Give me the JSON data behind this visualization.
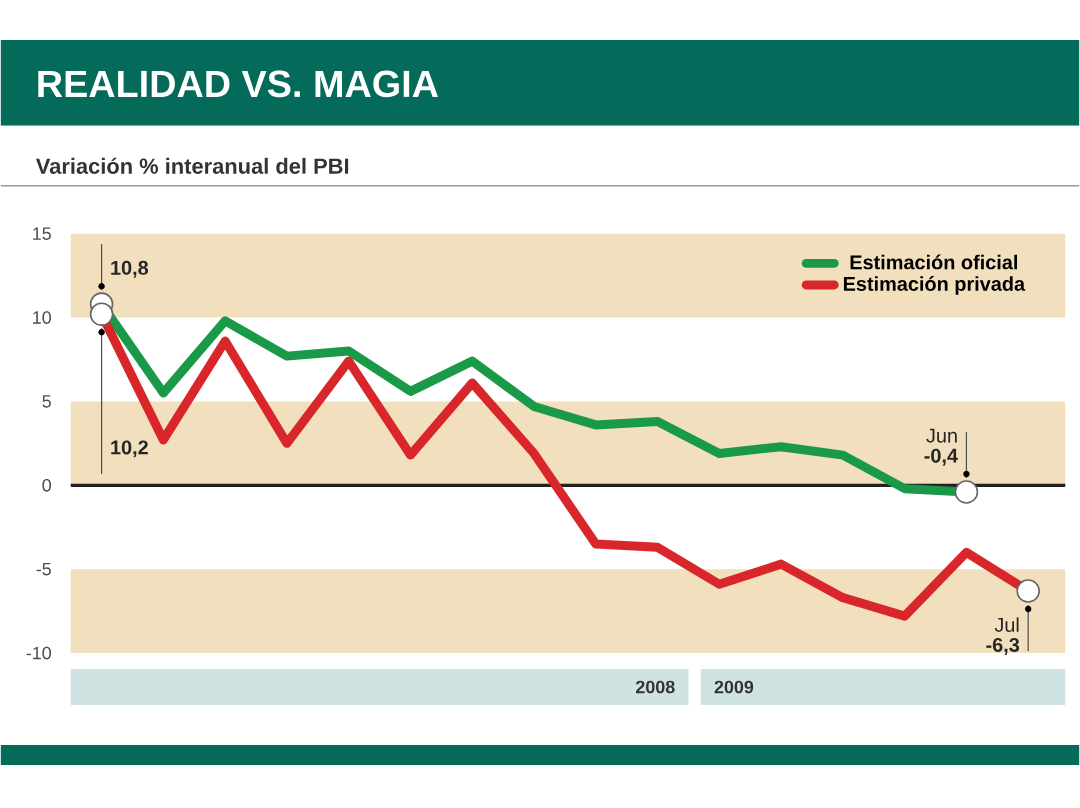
{
  "chart_data": {
    "type": "line",
    "title": "REALIDAD VS. MAGIA",
    "subtitle": "Variación % interanual del PBI",
    "categories": [
      null,
      null,
      null,
      null,
      null,
      null,
      null,
      null,
      null,
      null,
      null,
      null,
      null,
      null,
      null,
      null
    ],
    "series": [
      {
        "name": "Estimación oficial",
        "color": "#1a9a48",
        "values": [
          10.8,
          5.5,
          9.8,
          7.7,
          8.0,
          5.6,
          7.4,
          4.7,
          3.6,
          3.8,
          1.9,
          2.3,
          1.8,
          -0.2,
          -0.4,
          null
        ],
        "value_labels": [
          "10,8",
          null,
          null,
          null,
          null,
          null,
          null,
          null,
          null,
          null,
          null,
          null,
          null,
          null,
          "-0,4",
          null
        ]
      },
      {
        "name": "Estimación privada",
        "color": "#d8262a",
        "values": [
          10.2,
          2.7,
          8.6,
          2.5,
          7.4,
          1.8,
          6.1,
          1.9,
          -3.5,
          -3.7,
          -5.9,
          -4.7,
          -6.7,
          -7.8,
          -4.0,
          -6.3
        ],
        "value_labels": [
          "10,2",
          null,
          null,
          null,
          null,
          null,
          null,
          null,
          null,
          null,
          null,
          null,
          null,
          null,
          null,
          "-6,3"
        ]
      }
    ],
    "ylim": [
      -10,
      15
    ],
    "yticks": [
      -10,
      -5,
      0,
      5,
      10,
      15
    ],
    "grid": false,
    "legend": "top right",
    "marker": "none",
    "line_style": "solid",
    "bands": [
      {
        "axis": "y",
        "from": 10,
        "to": 15,
        "color": "#f2dfbd"
      },
      {
        "axis": "y",
        "from": 0,
        "to": 5,
        "color": "#f2dfbd"
      },
      {
        "axis": "y",
        "from": -10,
        "to": -5,
        "color": "#f2dfbd"
      }
    ],
    "ref_lines": [
      {
        "axis": "y",
        "value": 0,
        "color": "#222222"
      }
    ],
    "annotations": [
      "2008",
      "2009",
      "Jun",
      "Jul"
    ]
  }
}
